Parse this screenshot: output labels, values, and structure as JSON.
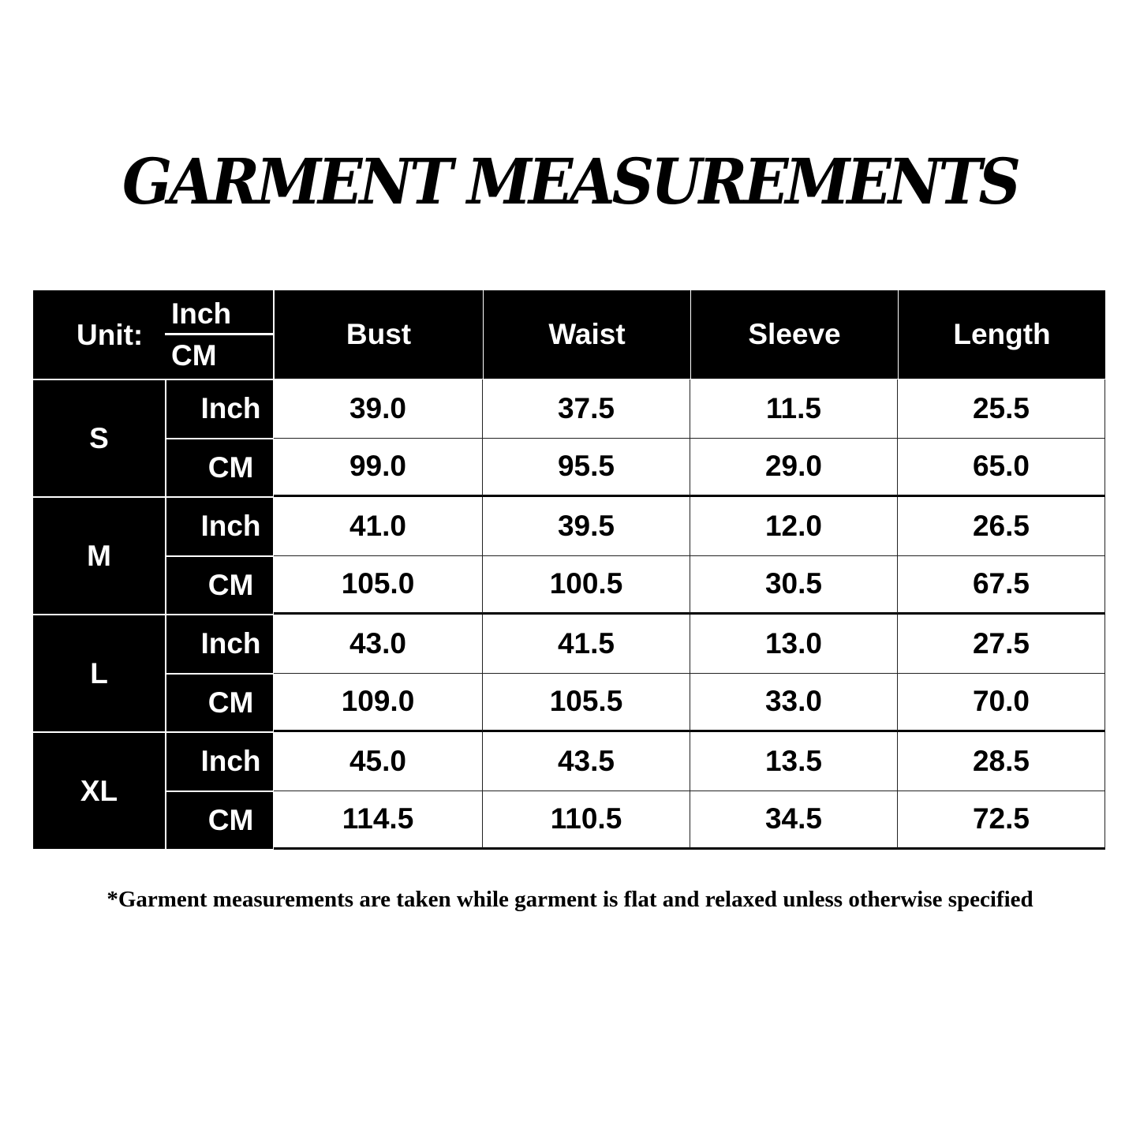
{
  "title": "GARMENT MEASUREMENTS",
  "table": {
    "unit_label": "Unit:",
    "unit_top": "Inch",
    "unit_bottom": "CM",
    "columns": [
      "Bust",
      "Waist",
      "Sleeve",
      "Length"
    ],
    "sizes": [
      {
        "size": "S",
        "rows": [
          {
            "unit": "Inch",
            "values": [
              "39.0",
              "37.5",
              "11.5",
              "25.5"
            ]
          },
          {
            "unit": "CM",
            "values": [
              "99.0",
              "95.5",
              "29.0",
              "65.0"
            ]
          }
        ]
      },
      {
        "size": "M",
        "rows": [
          {
            "unit": "Inch",
            "values": [
              "41.0",
              "39.5",
              "12.0",
              "26.5"
            ]
          },
          {
            "unit": "CM",
            "values": [
              "105.0",
              "100.5",
              "30.5",
              "67.5"
            ]
          }
        ]
      },
      {
        "size": "L",
        "rows": [
          {
            "unit": "Inch",
            "values": [
              "43.0",
              "41.5",
              "13.0",
              "27.5"
            ]
          },
          {
            "unit": "CM",
            "values": [
              "109.0",
              "105.5",
              "33.0",
              "70.0"
            ]
          }
        ]
      },
      {
        "size": "XL",
        "rows": [
          {
            "unit": "Inch",
            "values": [
              "45.0",
              "43.5",
              "13.5",
              "28.5"
            ]
          },
          {
            "unit": "CM",
            "values": [
              "114.5",
              "110.5",
              "34.5",
              "72.5"
            ]
          }
        ]
      }
    ]
  },
  "footnote": "*Garment measurements are taken while garment is flat and relaxed unless otherwise specified"
}
